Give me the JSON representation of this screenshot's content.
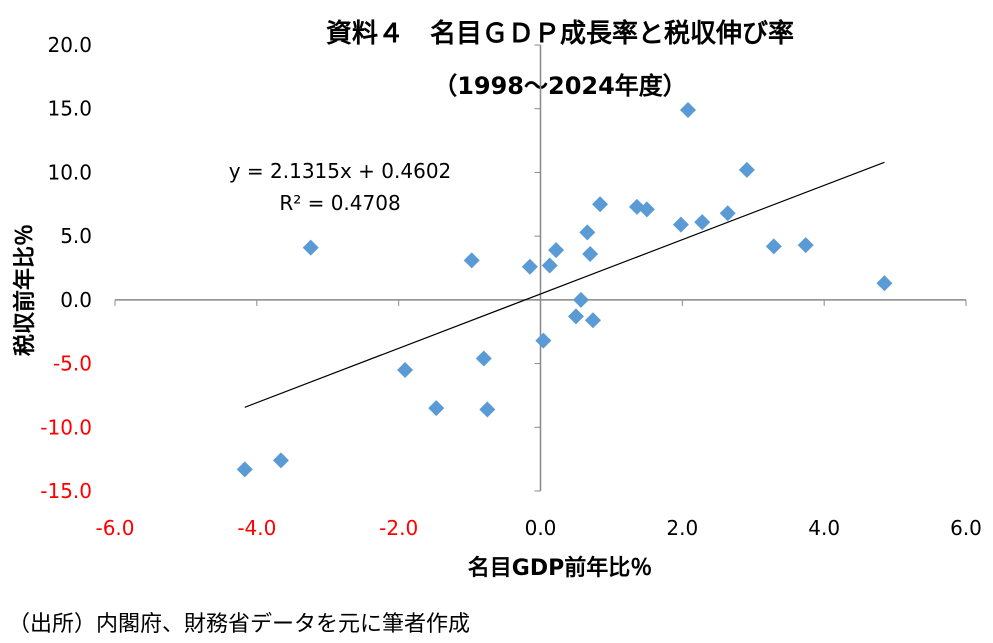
{
  "chart_data": {
    "type": "scatter",
    "title": "資料４　名目ＧＤＰ成長率と税収伸び率",
    "subtitle": "（1998～2024年度）",
    "xlabel": "名目GDP前年比％",
    "ylabel": "税収前年比％",
    "xlim": [
      -6,
      6
    ],
    "ylim": [
      -15,
      20
    ],
    "xticks": [
      "-6.0",
      "-4.0",
      "-2.0",
      "0.0",
      "2.0",
      "4.0",
      "6.0"
    ],
    "yticks": [
      "-15.0",
      "-10.0",
      "-5.0",
      "0.0",
      "5.0",
      "10.0",
      "15.0",
      "20.0"
    ],
    "negative_tick_color": "#ff0000",
    "marker_color": "#5b9bd5",
    "grid": false,
    "points": [
      [
        -4.17,
        -13.3
      ],
      [
        -3.66,
        -12.6
      ],
      [
        -3.24,
        4.1
      ],
      [
        -1.91,
        -5.5
      ],
      [
        -1.47,
        -8.5
      ],
      [
        -0.97,
        3.1
      ],
      [
        -0.8,
        -4.6
      ],
      [
        -0.75,
        -8.6
      ],
      [
        -0.15,
        2.6
      ],
      [
        0.04,
        -3.2
      ],
      [
        0.13,
        2.7
      ],
      [
        0.22,
        3.9
      ],
      [
        0.5,
        -1.3
      ],
      [
        0.57,
        0.0
      ],
      [
        0.66,
        5.3
      ],
      [
        0.7,
        3.6
      ],
      [
        0.74,
        -1.6
      ],
      [
        0.84,
        7.5
      ],
      [
        1.36,
        7.3
      ],
      [
        1.5,
        7.1
      ],
      [
        1.98,
        5.9
      ],
      [
        2.08,
        14.9
      ],
      [
        2.28,
        6.1
      ],
      [
        2.64,
        6.8
      ],
      [
        2.91,
        10.2
      ],
      [
        3.29,
        4.2
      ],
      [
        3.74,
        4.3
      ],
      [
        4.85,
        1.3
      ]
    ],
    "trendline": {
      "slope": 2.1315,
      "intercept": 0.4602,
      "x_range": [
        -4.17,
        4.85
      ],
      "equation": "y = 2.1315x + 0.4602",
      "r2": "R² = 0.4708"
    }
  },
  "source": "（出所）内閣府、財務省データを元に筆者作成"
}
